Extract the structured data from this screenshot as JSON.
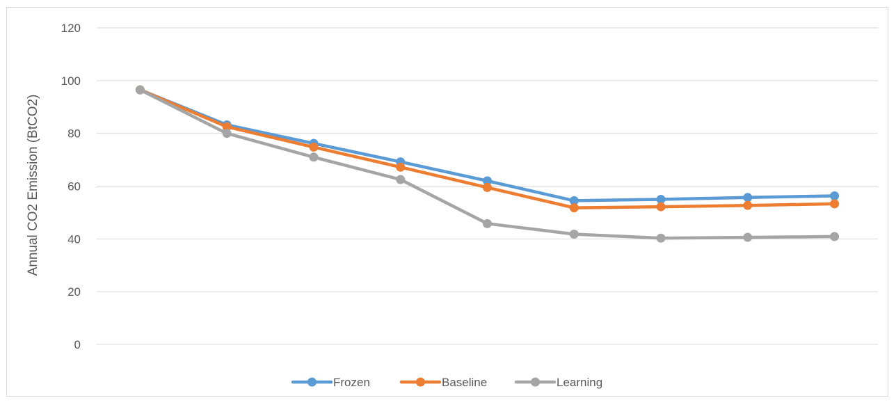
{
  "chart_data": {
    "type": "line",
    "title": "",
    "xlabel": "",
    "ylabel": "Annual CO2 Emission (BtCO2)",
    "ylim": [
      0,
      120
    ],
    "yticks": [
      0,
      20,
      40,
      60,
      80,
      100,
      120
    ],
    "grid": true,
    "legend_position": "bottom",
    "series": [
      {
        "name": "Frozen",
        "color": "#5B9BD5",
        "values": [
          96.5,
          83.2,
          76.2,
          69.2,
          62.0,
          54.5,
          55.0,
          55.7,
          56.3
        ]
      },
      {
        "name": "Baseline",
        "color": "#ED7D31",
        "values": [
          96.5,
          82.5,
          74.8,
          67.2,
          59.5,
          51.8,
          52.2,
          52.7,
          53.3
        ]
      },
      {
        "name": "Learning",
        "color": "#A5A5A5",
        "values": [
          96.5,
          80.0,
          71.0,
          62.5,
          45.8,
          41.8,
          40.3,
          40.6,
          40.9
        ]
      }
    ]
  }
}
